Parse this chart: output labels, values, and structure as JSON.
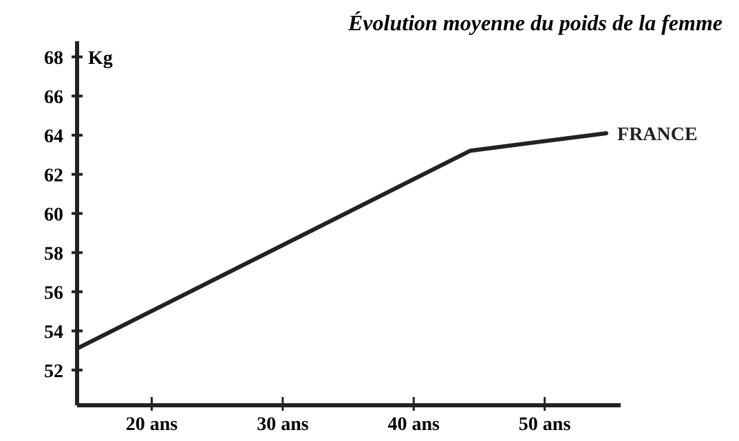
{
  "chart_data": {
    "type": "line",
    "title": "Évolution moyenne du poids de la femme",
    "ylabel": "Kg",
    "series": [
      {
        "name": "FRANCE",
        "color": "#222222",
        "x": [
          14.3,
          44.3,
          54.7
        ],
        "values": [
          53.1,
          63.2,
          64.1
        ]
      }
    ],
    "xlim": [
      14.3,
      55.8
    ],
    "xticks": [
      {
        "value": 20,
        "label": "20 ans"
      },
      {
        "value": 30,
        "label": "30 ans"
      },
      {
        "value": 40,
        "label": "40 ans"
      },
      {
        "value": 50,
        "label": "50 ans"
      }
    ],
    "ylim": [
      50.2,
      68.8
    ],
    "yticks": [
      52,
      54,
      56,
      58,
      60,
      62,
      64,
      66,
      68
    ],
    "grid": false,
    "legend": false,
    "marker": "none",
    "line_style": "solid"
  }
}
